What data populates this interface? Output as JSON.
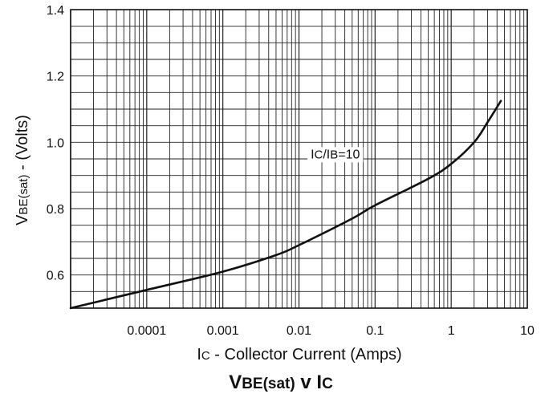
{
  "chart_data": {
    "type": "line",
    "title": {
      "main": "V",
      "main_sub": "BE(sat)",
      "mid": " v I",
      "end_sub": "C"
    },
    "xlabel": {
      "pre": "I",
      "sub": "C",
      "post": " - Collector Current (Amps)"
    },
    "ylabel": {
      "pre": "V",
      "sub": "BE(sat)",
      "post": " - (Volts)"
    },
    "x_scale": "log",
    "xlim": [
      1e-05,
      10
    ],
    "ylim": [
      0.5,
      1.4
    ],
    "x_ticks": [
      {
        "value": 0.0001,
        "label": "0.0001"
      },
      {
        "value": 0.001,
        "label": "0.001"
      },
      {
        "value": 0.01,
        "label": "0.01"
      },
      {
        "value": 0.1,
        "label": "0.1"
      },
      {
        "value": 1,
        "label": "1"
      },
      {
        "value": 10,
        "label": "10"
      }
    ],
    "y_ticks": [
      {
        "value": 0.6,
        "label": "0.6"
      },
      {
        "value": 0.8,
        "label": "0.8"
      },
      {
        "value": 1.0,
        "label": "1.0"
      },
      {
        "value": 1.2,
        "label": "1.2"
      },
      {
        "value": 1.4,
        "label": "1.4"
      }
    ],
    "grid": true,
    "annotation": {
      "pre": "I",
      "sub1": "C",
      "mid": "/I",
      "sub2": "B",
      "post": "=10",
      "x": 0.03,
      "y": 1.0
    },
    "series": [
      {
        "x": [
          1e-05,
          0.0001,
          0.001,
          0.005,
          0.01,
          0.05,
          0.1,
          0.5,
          1,
          2,
          3,
          4.5
        ],
        "y": [
          0.5,
          0.555,
          0.61,
          0.66,
          0.69,
          0.77,
          0.81,
          0.89,
          0.935,
          1.0,
          1.06,
          1.125
        ]
      }
    ]
  }
}
